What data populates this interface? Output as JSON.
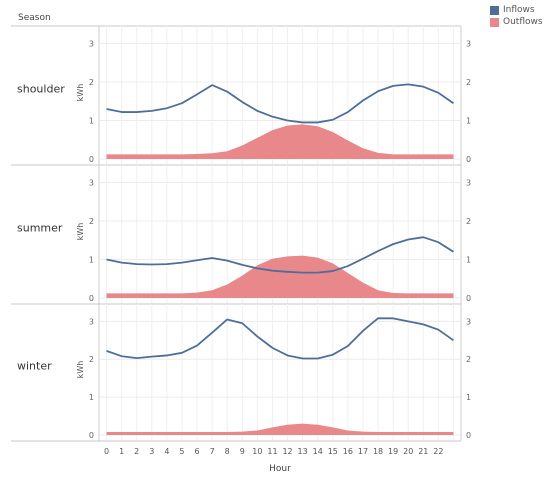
{
  "chart_data": {
    "type": "area",
    "facet_header": "Season",
    "x_label": "Hour",
    "y_label": "kWh",
    "x_ticks": [
      "0",
      "1",
      "2",
      "3",
      "4",
      "5",
      "6",
      "7",
      "8",
      "9",
      "10",
      "11",
      "12",
      "13",
      "14",
      "15",
      "16",
      "17",
      "18",
      "19",
      "20",
      "21",
      "22"
    ],
    "y_ticks": [
      "0",
      "1",
      "2",
      "3"
    ],
    "ylim": [
      0,
      3.3
    ],
    "legend_position": "top-right",
    "series": [
      {
        "name": "Inflows",
        "color": "#4e6e9a",
        "style": "line"
      },
      {
        "name": "Outflows",
        "color": "#e8888b",
        "style": "area"
      }
    ],
    "panels": [
      {
        "season": "shoulder",
        "inflows": [
          1.3,
          1.22,
          1.22,
          1.25,
          1.32,
          1.45,
          1.68,
          1.92,
          1.75,
          1.48,
          1.25,
          1.1,
          1.0,
          0.95,
          0.95,
          1.02,
          1.22,
          1.52,
          1.76,
          1.9,
          1.94,
          1.88,
          1.72,
          1.45
        ],
        "outflows": [
          0.12,
          0.12,
          0.12,
          0.12,
          0.12,
          0.12,
          0.13,
          0.15,
          0.2,
          0.35,
          0.55,
          0.75,
          0.87,
          0.9,
          0.85,
          0.7,
          0.48,
          0.28,
          0.16,
          0.12,
          0.12,
          0.12,
          0.12,
          0.12
        ]
      },
      {
        "season": "summer",
        "inflows": [
          1.0,
          0.92,
          0.88,
          0.87,
          0.88,
          0.92,
          0.98,
          1.04,
          0.97,
          0.86,
          0.77,
          0.71,
          0.68,
          0.66,
          0.66,
          0.7,
          0.83,
          1.02,
          1.22,
          1.4,
          1.52,
          1.58,
          1.45,
          1.2
        ],
        "outflows": [
          0.12,
          0.12,
          0.12,
          0.12,
          0.12,
          0.12,
          0.14,
          0.2,
          0.35,
          0.58,
          0.85,
          1.02,
          1.08,
          1.1,
          1.05,
          0.9,
          0.65,
          0.4,
          0.2,
          0.13,
          0.12,
          0.12,
          0.12,
          0.12
        ]
      },
      {
        "season": "winter",
        "inflows": [
          2.22,
          2.08,
          2.03,
          2.07,
          2.1,
          2.17,
          2.36,
          2.7,
          3.05,
          2.95,
          2.6,
          2.3,
          2.1,
          2.02,
          2.02,
          2.12,
          2.35,
          2.75,
          3.08,
          3.08,
          3.0,
          2.92,
          2.78,
          2.5
        ],
        "outflows": [
          0.08,
          0.08,
          0.08,
          0.08,
          0.08,
          0.08,
          0.08,
          0.08,
          0.08,
          0.09,
          0.12,
          0.2,
          0.27,
          0.3,
          0.27,
          0.2,
          0.12,
          0.09,
          0.08,
          0.08,
          0.08,
          0.08,
          0.08,
          0.08
        ]
      }
    ]
  }
}
